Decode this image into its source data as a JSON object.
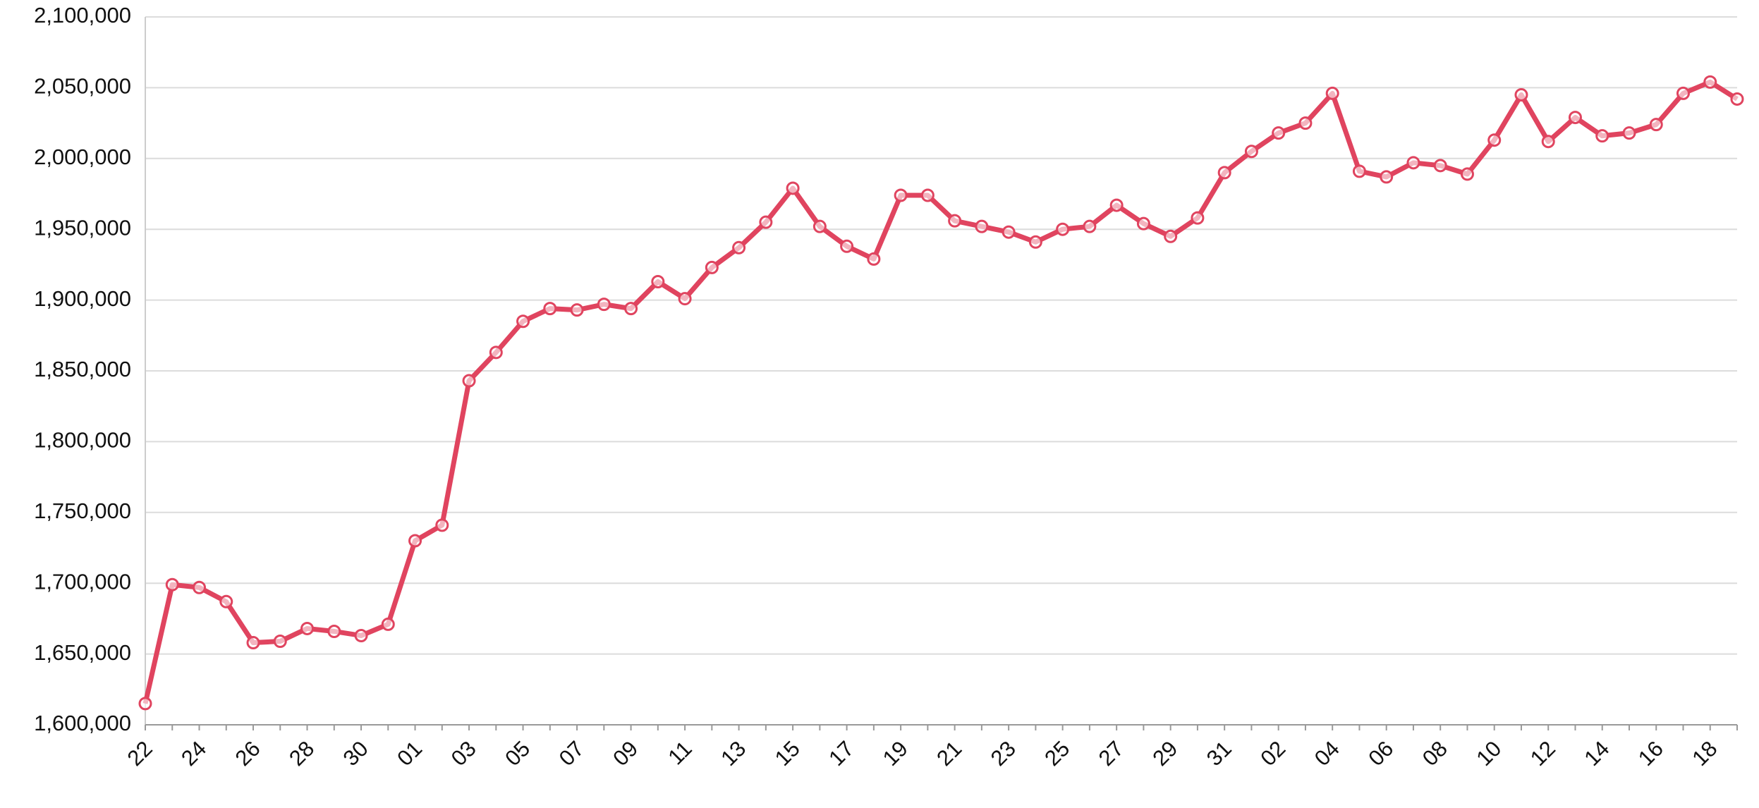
{
  "chart_data": {
    "type": "line",
    "categories": [
      "22",
      null,
      "24",
      null,
      "26",
      null,
      "28",
      null,
      "30",
      null,
      "01",
      null,
      "03",
      null,
      "05",
      null,
      "07",
      null,
      "09",
      null,
      "11",
      null,
      "13",
      null,
      "15",
      null,
      "17",
      null,
      "19",
      null,
      "21",
      null,
      "23",
      null,
      "25",
      null,
      "27",
      null,
      "29",
      null,
      "31",
      null,
      "02",
      null,
      "04",
      null,
      "06",
      null,
      "08",
      null,
      "10",
      null,
      "12",
      null,
      "14",
      null,
      "16",
      null,
      "18",
      null
    ],
    "series": [
      {
        "color": "#e0445f",
        "values": [
          1615000,
          1699000,
          1697000,
          1687000,
          1658000,
          1659000,
          1668000,
          1666000,
          1663000,
          1671000,
          1730000,
          1741000,
          1843000,
          1863000,
          1885000,
          1894000,
          1893000,
          1897000,
          1894000,
          1913000,
          1901000,
          1923000,
          1937000,
          1955000,
          1979000,
          1952000,
          1938000,
          1929000,
          1974000,
          1974000,
          1956000,
          1952000,
          1948000,
          1941000,
          1950000,
          1952000,
          1967000,
          1954000,
          1945000,
          1958000,
          1990000,
          2005000,
          2018000,
          2025000,
          2046000,
          1991000,
          1987000,
          1997000,
          1995000,
          1989000,
          2013000,
          2045000,
          2012000,
          2029000,
          2016000,
          2018000,
          2024000,
          2046000,
          2054000,
          2042000
        ]
      }
    ],
    "ylim": [
      1600000,
      2100000
    ],
    "yticks": [
      {
        "value": 1600000,
        "label": "1,600,000"
      },
      {
        "value": 1650000,
        "label": "1,650,000"
      },
      {
        "value": 1700000,
        "label": "1,700,000"
      },
      {
        "value": 1750000,
        "label": "1,750,000"
      },
      {
        "value": 1800000,
        "label": "1,800,000"
      },
      {
        "value": 1850000,
        "label": "1,850,000"
      },
      {
        "value": 1900000,
        "label": "1,900,000"
      },
      {
        "value": 1950000,
        "label": "1,950,000"
      },
      {
        "value": 2000000,
        "label": "2,000,000"
      },
      {
        "value": 2050000,
        "label": "2,050,000"
      },
      {
        "value": 2100000,
        "label": "2,100,000"
      }
    ],
    "grid": true
  }
}
